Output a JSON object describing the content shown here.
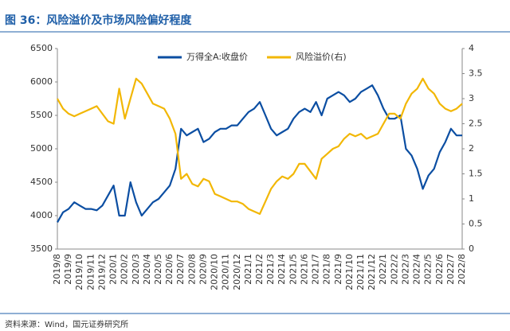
{
  "chart_data": {
    "type": "line",
    "title": "图 36：风险溢价及市场风险偏好程度",
    "source": "资料来源：Wind，国元证券研究所",
    "categories": [
      "2019/8",
      null,
      "2019/9",
      null,
      "2019/10",
      null,
      "2019/11",
      null,
      "2019/12",
      null,
      "2020/1",
      null,
      "2020/2",
      null,
      "2020/3",
      null,
      "2020/4",
      null,
      "2020/5",
      null,
      "2020/6",
      null,
      "2020/7",
      null,
      "2020/8",
      null,
      "2020/9",
      null,
      "2020/10",
      null,
      "2020/11",
      null,
      "2020/12",
      null,
      "2021/1",
      null,
      "2021/2",
      null,
      "2021/3",
      null,
      "2021/4",
      null,
      "2021/5",
      null,
      "2021/6",
      null,
      "2021/7",
      null,
      "2021/8",
      null,
      "2021/9",
      null,
      "2021/10",
      null,
      "2021/11",
      null,
      "2021/12",
      null,
      "2022/1",
      null,
      "2022/2",
      null,
      "2022/3",
      null,
      "2022/4",
      null,
      "2022/5",
      null,
      "2022/6",
      null,
      "2022/7",
      null,
      "2022/8"
    ],
    "series": [
      {
        "name": "万得全A:收盘价",
        "color": "#0b4ea2",
        "axis": "y",
        "values": [
          3900,
          4050,
          4100,
          4200,
          4150,
          4100,
          4100,
          4080,
          4150,
          4300,
          4450,
          4000,
          4000,
          4500,
          4200,
          4000,
          4100,
          4200,
          4250,
          4350,
          4450,
          4700,
          5300,
          5200,
          5250,
          5300,
          5100,
          5150,
          5250,
          5300,
          5300,
          5350,
          5350,
          5450,
          5550,
          5600,
          5700,
          5500,
          5300,
          5200,
          5250,
          5300,
          5450,
          5550,
          5600,
          5550,
          5700,
          5500,
          5750,
          5800,
          5850,
          5800,
          5700,
          5750,
          5850,
          5900,
          5950,
          5800,
          5600,
          5450,
          5450,
          5500,
          5000,
          4900,
          4700,
          4400,
          4600,
          4700,
          4950,
          5100,
          5300,
          5200,
          5200
        ]
      },
      {
        "name": "风险溢价(右)",
        "color": "#f2b705",
        "axis": "y2",
        "values": [
          3.0,
          2.8,
          2.7,
          2.65,
          2.7,
          2.75,
          2.8,
          2.85,
          2.7,
          2.55,
          2.5,
          3.2,
          2.6,
          3.0,
          3.4,
          3.3,
          3.1,
          2.9,
          2.85,
          2.8,
          2.6,
          2.3,
          1.4,
          1.5,
          1.3,
          1.25,
          1.4,
          1.35,
          1.1,
          1.05,
          1.0,
          0.95,
          0.95,
          0.9,
          0.8,
          0.75,
          0.7,
          0.95,
          1.2,
          1.35,
          1.45,
          1.4,
          1.5,
          1.7,
          1.7,
          1.55,
          1.4,
          1.8,
          1.9,
          2.0,
          2.05,
          2.2,
          2.3,
          2.25,
          2.3,
          2.2,
          2.25,
          2.3,
          2.5,
          2.7,
          2.7,
          2.6,
          2.9,
          3.1,
          3.2,
          3.4,
          3.2,
          3.1,
          2.9,
          2.8,
          2.75,
          2.8,
          2.9
        ]
      }
    ],
    "ylim": [
      3500,
      6500
    ],
    "yticks": [
      3500,
      4000,
      4500,
      5000,
      5500,
      6000,
      6500
    ],
    "y2lim": [
      0,
      4
    ],
    "y2ticks": [
      0,
      0.5,
      1,
      1.5,
      2,
      2.5,
      3,
      3.5,
      4
    ],
    "legend": "top"
  }
}
